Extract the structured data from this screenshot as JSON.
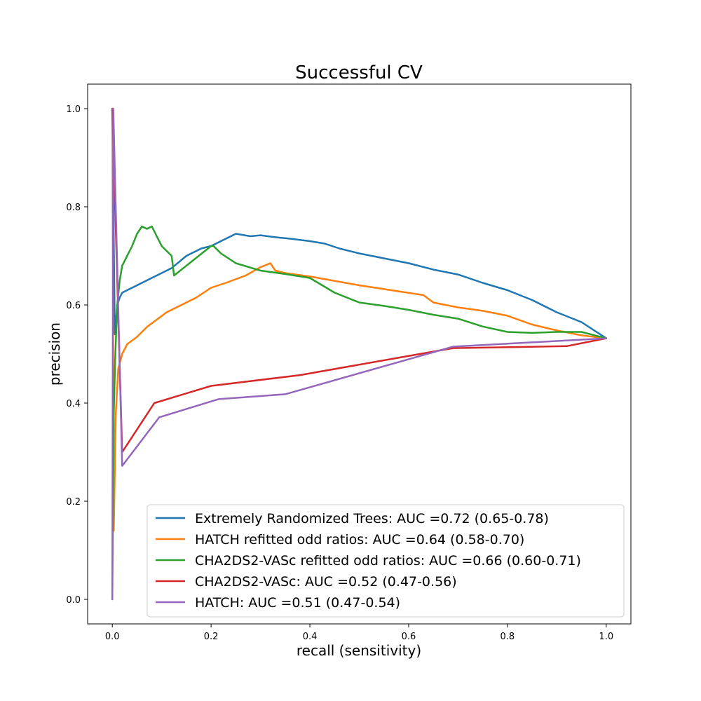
{
  "chart_data": {
    "type": "line",
    "title": "Successful CV",
    "xlabel": "recall (sensitivity)",
    "ylabel": "precision",
    "xlim": [
      -0.05,
      1.05
    ],
    "ylim": [
      -0.05,
      1.05
    ],
    "xticks": [
      0.0,
      0.2,
      0.4,
      0.6,
      0.8,
      1.0
    ],
    "xtick_labels": [
      "0.0",
      "0.2",
      "0.4",
      "0.6",
      "0.8",
      "1.0"
    ],
    "yticks": [
      0.0,
      0.2,
      0.4,
      0.6,
      0.8,
      1.0
    ],
    "ytick_labels": [
      "0.0",
      "0.2",
      "0.4",
      "0.6",
      "0.8",
      "1.0"
    ],
    "grid": false,
    "legend_position": "lower-right",
    "series": [
      {
        "name": "Extremely Randomized Trees: AUC =0.72 (0.65-0.78)",
        "color": "#1f77b4",
        "x": [
          0.0,
          0.005,
          0.01,
          0.015,
          0.02,
          0.03,
          0.05,
          0.07,
          0.09,
          0.1,
          0.12,
          0.15,
          0.18,
          0.2,
          0.22,
          0.25,
          0.28,
          0.3,
          0.33,
          0.36,
          0.4,
          0.43,
          0.46,
          0.5,
          0.55,
          0.6,
          0.65,
          0.7,
          0.75,
          0.8,
          0.85,
          0.9,
          0.95,
          1.0
        ],
        "y": [
          1.0,
          0.54,
          0.6,
          0.615,
          0.625,
          0.63,
          0.64,
          0.65,
          0.66,
          0.665,
          0.675,
          0.7,
          0.715,
          0.72,
          0.73,
          0.745,
          0.74,
          0.742,
          0.738,
          0.735,
          0.73,
          0.725,
          0.715,
          0.705,
          0.695,
          0.685,
          0.672,
          0.662,
          0.645,
          0.63,
          0.61,
          0.585,
          0.565,
          0.532
        ]
      },
      {
        "name": "HATCH refitted odd ratios: AUC =0.64 (0.58-0.70)",
        "color": "#ff7f0e",
        "x": [
          0.0,
          0.003,
          0.007,
          0.012,
          0.02,
          0.03,
          0.05,
          0.07,
          0.09,
          0.11,
          0.14,
          0.17,
          0.2,
          0.23,
          0.27,
          0.3,
          0.32,
          0.33,
          0.35,
          0.4,
          0.5,
          0.63,
          0.65,
          0.7,
          0.75,
          0.8,
          0.85,
          0.9,
          0.95,
          1.0
        ],
        "y": [
          1.0,
          0.14,
          0.38,
          0.47,
          0.5,
          0.52,
          0.535,
          0.555,
          0.57,
          0.585,
          0.6,
          0.615,
          0.635,
          0.645,
          0.66,
          0.677,
          0.685,
          0.67,
          0.665,
          0.658,
          0.64,
          0.62,
          0.605,
          0.595,
          0.588,
          0.578,
          0.56,
          0.548,
          0.538,
          0.532
        ]
      },
      {
        "name": "CHA2DS2-VASc refitted odd ratios: AUC =0.66 (0.60-0.71)",
        "color": "#2ca02c",
        "x": [
          0.0,
          0.003,
          0.006,
          0.01,
          0.015,
          0.02,
          0.03,
          0.04,
          0.05,
          0.06,
          0.07,
          0.08,
          0.09,
          0.1,
          0.12,
          0.125,
          0.15,
          0.2,
          0.205,
          0.22,
          0.25,
          0.3,
          0.35,
          0.4,
          0.45,
          0.5,
          0.55,
          0.6,
          0.65,
          0.7,
          0.75,
          0.8,
          0.85,
          0.9,
          0.95,
          1.0
        ],
        "y": [
          0.0,
          0.38,
          0.5,
          0.6,
          0.65,
          0.68,
          0.7,
          0.72,
          0.745,
          0.76,
          0.755,
          0.76,
          0.74,
          0.72,
          0.7,
          0.66,
          0.68,
          0.72,
          0.72,
          0.705,
          0.685,
          0.67,
          0.663,
          0.655,
          0.625,
          0.605,
          0.598,
          0.59,
          0.58,
          0.572,
          0.556,
          0.545,
          0.543,
          0.545,
          0.545,
          0.532
        ]
      },
      {
        "name": "CHA2DS2-VASc: AUC =0.52 (0.47-0.56)",
        "color": "#d62728",
        "x": [
          0.0,
          0.02,
          0.085,
          0.2,
          0.38,
          0.69,
          0.92,
          1.0
        ],
        "y": [
          1.0,
          0.3,
          0.4,
          0.435,
          0.457,
          0.512,
          0.516,
          0.532
        ]
      },
      {
        "name": "HATCH: AUC =0.51 (0.47-0.54)",
        "color": "#9467bd",
        "x": [
          0.0,
          0.002,
          0.02,
          0.095,
          0.215,
          0.35,
          0.69,
          1.0
        ],
        "y": [
          0.0,
          1.0,
          0.272,
          0.371,
          0.408,
          0.418,
          0.515,
          0.532
        ]
      }
    ]
  }
}
